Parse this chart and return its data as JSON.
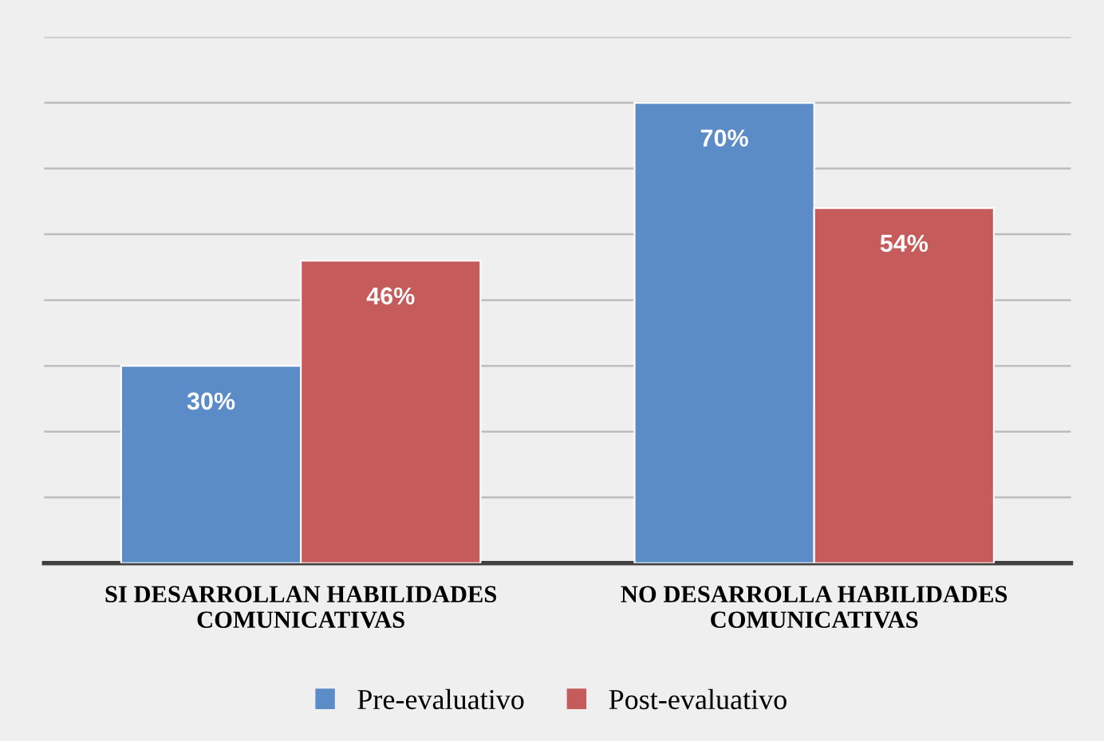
{
  "chart_data": {
    "type": "bar",
    "categories": [
      "SI DESARROLLAN HABILIDADES\nCOMUNICATIVAS",
      "NO DESARROLLA HABILIDADES\nCOMUNICATIVAS"
    ],
    "series": [
      {
        "name": "Pre-evaluativo",
        "color": "#5b8cc8",
        "values": [
          30,
          70
        ],
        "value_labels": [
          "30%",
          "70%"
        ]
      },
      {
        "name": "Post-evaluativo",
        "color": "#c65b5b",
        "values": [
          46,
          54
        ],
        "value_labels": [
          "46%",
          "54%"
        ]
      }
    ],
    "ylim": [
      0,
      80
    ],
    "yticks": [
      {
        "value": 0,
        "label": null
      },
      {
        "value": 10,
        "label": null
      },
      {
        "value": 20,
        "label": null
      },
      {
        "value": 30,
        "label": null
      },
      {
        "value": 40,
        "label": null
      },
      {
        "value": 50,
        "label": null
      },
      {
        "value": 60,
        "label": null
      },
      {
        "value": 70,
        "label": null
      },
      {
        "value": 80,
        "label": null
      }
    ],
    "tick_labels": "x",
    "grid": "y",
    "legend": "bottom"
  }
}
